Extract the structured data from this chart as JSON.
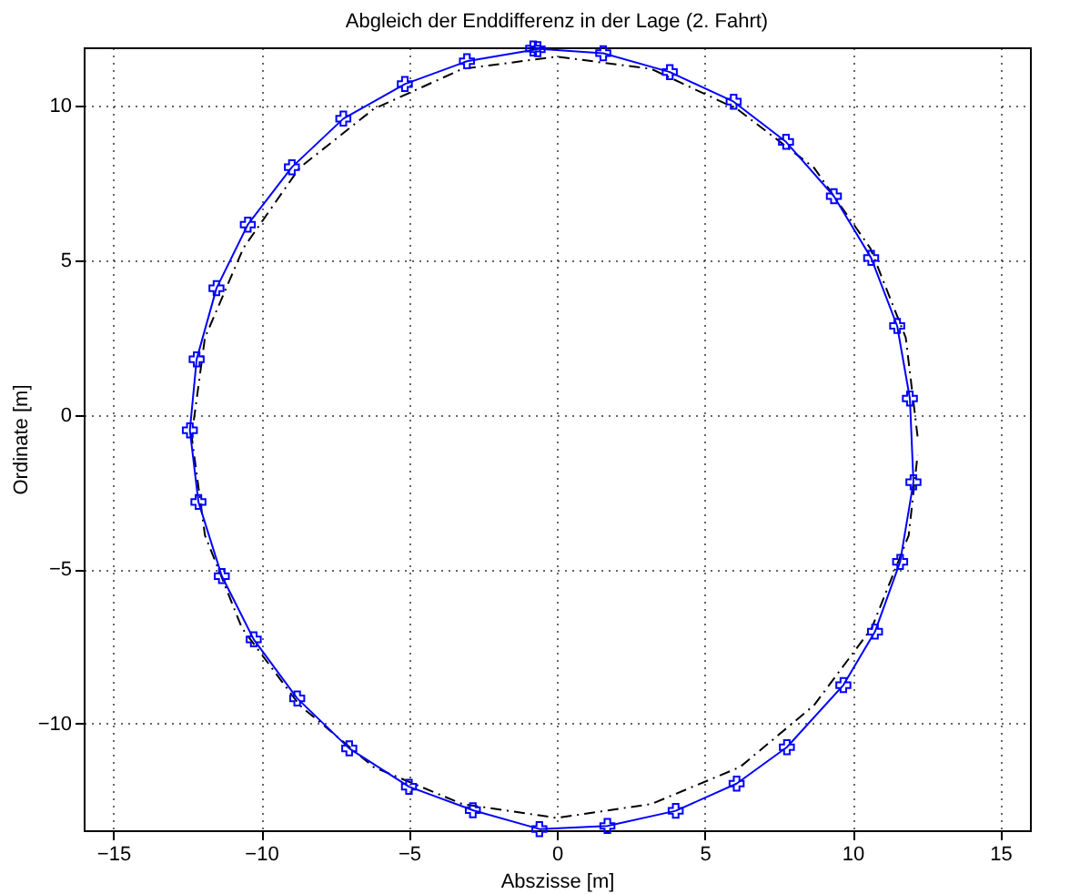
{
  "chart_data": {
    "type": "line",
    "title": "Abgleich der Enddifferenz in der Lage (2. Fahrt)",
    "xlabel": "Abszisse [m]",
    "ylabel": "Ordinate [m]",
    "xlim": [
      -16,
      16
    ],
    "ylim": [
      -13.45,
      11.9
    ],
    "xticks": [
      -15,
      -10,
      -5,
      0,
      5,
      10,
      15
    ],
    "yticks": [
      -10,
      -5,
      0,
      5,
      10
    ],
    "grid": true,
    "series": [
      {
        "color": "#000000",
        "line_style": "dashed",
        "marker": "none",
        "x": [
          12.2,
          11.8,
          10.6,
          8.7,
          6.1,
          3.2,
          0,
          -3.2,
          -6.2,
          -8.7,
          -10.6,
          -11.9,
          -12.35,
          -11.9,
          -10.65,
          -8.7,
          -6.2,
          -3.2,
          0,
          3.2,
          6.2,
          8.7,
          10.65,
          11.9,
          12.2
        ],
        "values": [
          -0.7,
          2.5,
          5.4,
          8.0,
          9.9,
          11.2,
          11.6,
          11.2,
          9.9,
          8.0,
          5.4,
          2.5,
          -0.7,
          -3.9,
          -6.9,
          -9.4,
          -11.4,
          -12.6,
          -13.05,
          -12.6,
          -11.4,
          -9.4,
          -6.9,
          -3.9,
          -1.3
        ]
      },
      {
        "color": "#0000ff",
        "line_style": "solid",
        "marker": "cross",
        "x": [
          -0.65,
          -3.04,
          -5.14,
          -7.22,
          -8.96,
          -10.45,
          -11.51,
          -12.18,
          -12.41,
          -12.12,
          -11.33,
          -10.25,
          -8.78,
          -7.02,
          -5.0,
          -2.84,
          -0.59,
          1.71,
          4.02,
          6.08,
          7.78,
          9.69,
          10.76,
          11.61,
          12.06,
          11.94,
          11.51,
          10.63,
          9.37,
          7.75,
          5.98,
          3.82,
          1.57,
          -0.8
        ],
        "values": [
          11.84,
          11.45,
          10.71,
          9.59,
          8.02,
          6.16,
          4.1,
          1.8,
          -0.5,
          -2.82,
          -5.22,
          -7.27,
          -9.18,
          -10.8,
          -12.04,
          -12.8,
          -13.41,
          -13.31,
          -12.82,
          -11.94,
          -10.76,
          -8.75,
          -7.02,
          -4.76,
          -2.18,
          0.53,
          2.88,
          5.08,
          7.08,
          8.84,
          10.14,
          11.1,
          11.71,
          11.86
        ]
      }
    ]
  }
}
